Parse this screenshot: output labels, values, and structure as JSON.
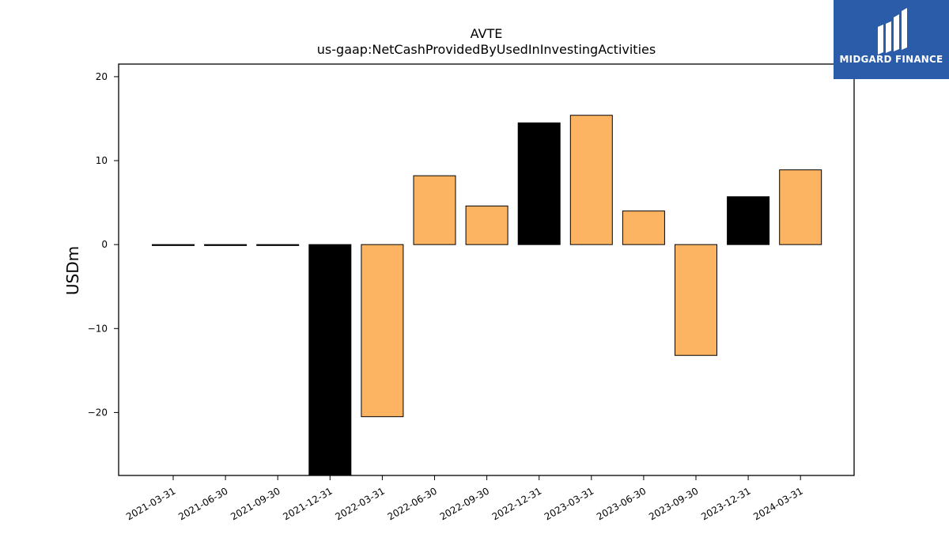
{
  "chart_data": {
    "type": "bar",
    "title": "AVTE",
    "subtitle": "us-gaap:NetCashProvidedByUsedInInvestingActivities",
    "xlabel": "",
    "ylabel": "USDm",
    "ylim": [
      -27.5,
      21.5
    ],
    "yticks": [
      20,
      10,
      0,
      -10,
      -20
    ],
    "ytick_labels": [
      "20",
      "10",
      "0",
      "−10",
      "−20"
    ],
    "grid": false,
    "categories": [
      "2021-03-31",
      "2021-06-30",
      "2021-09-30",
      "2021-12-31",
      "2022-03-31",
      "2022-06-30",
      "2022-09-30",
      "2022-12-31",
      "2023-03-31",
      "2023-06-30",
      "2023-09-30",
      "2023-12-31",
      "2024-03-31"
    ],
    "values": [
      -0.1,
      -0.05,
      -0.1,
      -28.0,
      -20.5,
      8.2,
      4.6,
      14.5,
      15.4,
      4.0,
      -13.2,
      5.7,
      8.9
    ],
    "bar_colors": [
      "#000000",
      "#000000",
      "#000000",
      "#000000",
      "#fdb462",
      "#fdb462",
      "#fdb462",
      "#000000",
      "#fdb462",
      "#fdb462",
      "#fdb462",
      "#000000",
      "#fdb462"
    ]
  },
  "logo": {
    "text": "MIDGARD FINANCE",
    "background": "#2a5caa"
  }
}
